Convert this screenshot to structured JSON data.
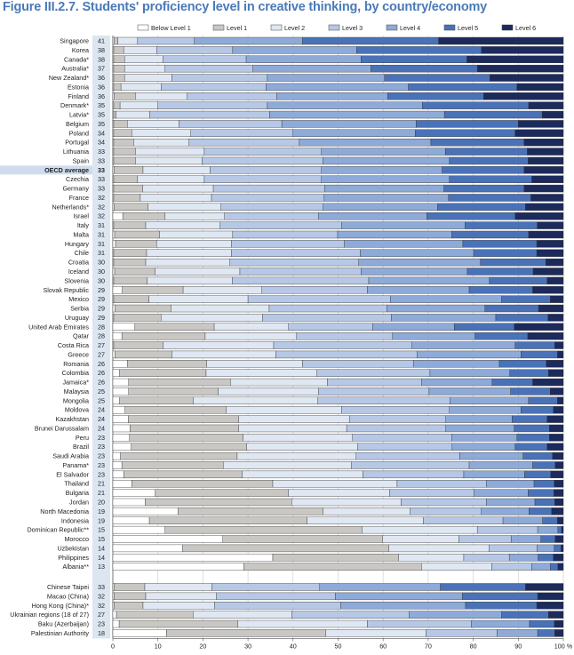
{
  "title": "Figure III.2.7. Students' proficiency level in creative thinking, by country/economy",
  "chart_data": {
    "type": "bar",
    "orientation": "horizontal-stacked-100",
    "title": "Figure III.2.7. Students' proficiency level in creative thinking, by country/economy",
    "legend_position": "top",
    "grid": true,
    "xlim": [
      0,
      100
    ],
    "x_ticks": [
      "0",
      "10",
      "20",
      "30",
      "40",
      "50",
      "60",
      "70",
      "80",
      "90",
      "100 %"
    ],
    "series": [
      {
        "name": "Below Level 1",
        "color": "#ffffff"
      },
      {
        "name": "Level 1",
        "color": "#c9c7c3"
      },
      {
        "name": "Level 2",
        "color": "#dfe7f3"
      },
      {
        "name": "Level 3",
        "color": "#b6c8e6"
      },
      {
        "name": "Level 4",
        "color": "#8eaad8"
      },
      {
        "name": "Level 5",
        "color": "#4a72b8"
      },
      {
        "name": "Level 6",
        "color": "#1c2a5c"
      }
    ],
    "groups": [
      {
        "rows": [
          {
            "name": "Singapore",
            "score": "41",
            "values": [
              0.3,
              0.8,
              4.4,
              12.6,
              24.0,
              30.2,
              27.7
            ]
          },
          {
            "name": "Korea",
            "score": "38",
            "values": [
              0.2,
              2.2,
              7.3,
              16.9,
              27.5,
              27.7,
              18.2
            ]
          },
          {
            "name": "Canada*",
            "score": "38",
            "values": [
              0.2,
              2.4,
              8.5,
              18.5,
              25.5,
              23.5,
              21.4
            ]
          },
          {
            "name": "Australia*",
            "score": "37",
            "values": [
              0.2,
              2.4,
              9.0,
              19.5,
              26.2,
              23.6,
              19.1
            ]
          },
          {
            "name": "New Zealand*",
            "score": "36",
            "values": [
              0.2,
              2.4,
              10.5,
              21.2,
              26.0,
              23.4,
              16.3
            ]
          },
          {
            "name": "Estonia",
            "score": "36",
            "values": [
              0.2,
              1.6,
              8.9,
              23.3,
              31.6,
              24.1,
              10.3
            ]
          },
          {
            "name": "Finland",
            "score": "36",
            "values": [
              0.3,
              4.7,
              11.5,
              19.9,
              24.6,
              21.3,
              17.7
            ]
          },
          {
            "name": "Denmark*",
            "score": "35",
            "values": [
              0.2,
              1.4,
              8.4,
              24.3,
              34.4,
              23.6,
              7.7
            ]
          },
          {
            "name": "Latvia*",
            "score": "35",
            "values": [
              0.2,
              0.5,
              7.5,
              26.6,
              38.8,
              21.7,
              4.7
            ]
          },
          {
            "name": "Belgium",
            "score": "35",
            "values": [
              0.2,
              3.0,
              11.5,
              22.8,
              29.8,
              22.7,
              10.0
            ]
          },
          {
            "name": "Poland",
            "score": "34",
            "values": [
              0.2,
              4.0,
              13.1,
              22.7,
              27.1,
              22.2,
              10.7
            ]
          },
          {
            "name": "Portugal",
            "score": "34",
            "values": [
              0.2,
              4.4,
              12.3,
              24.5,
              29.2,
              20.7,
              8.7
            ]
          },
          {
            "name": "Lithuania",
            "score": "33",
            "values": [
              0.2,
              4.8,
              15.3,
              26.0,
              27.5,
              18.2,
              8.0
            ]
          },
          {
            "name": "Spain",
            "score": "33",
            "values": [
              0.2,
              4.8,
              14.8,
              26.8,
              28.1,
              17.5,
              7.8
            ]
          },
          {
            "name": "OECD average",
            "score": "33",
            "highlight": true,
            "values": [
              0.3,
              6.4,
              14.9,
              24.7,
              26.8,
              18.2,
              8.7
            ]
          },
          {
            "name": "Czechia",
            "score": "33",
            "values": [
              0.2,
              5.3,
              14.8,
              26.0,
              28.4,
              18.3,
              7.0
            ]
          },
          {
            "name": "Germany",
            "score": "33",
            "values": [
              0.2,
              6.4,
              15.7,
              24.7,
              26.5,
              17.8,
              8.7
            ]
          },
          {
            "name": "France",
            "score": "32",
            "values": [
              0.2,
              5.9,
              15.8,
              25.0,
              27.6,
              18.3,
              7.2
            ]
          },
          {
            "name": "Netherlands*",
            "score": "32",
            "values": [
              0.3,
              7.5,
              16.2,
              22.7,
              25.4,
              19.5,
              8.4
            ]
          },
          {
            "name": "Israel",
            "score": "32",
            "values": [
              2.2,
              9.4,
              13.2,
              20.8,
              24.1,
              19.6,
              10.7
            ]
          },
          {
            "name": "Italy",
            "score": "31",
            "values": [
              0.2,
              7.1,
              16.5,
              27.0,
              27.4,
              16.0,
              5.8
            ]
          },
          {
            "name": "Malta",
            "score": "31",
            "values": [
              0.4,
              10.0,
              16.2,
              23.3,
              25.3,
              17.1,
              7.7
            ]
          },
          {
            "name": "Hungary",
            "score": "31",
            "values": [
              0.6,
              9.1,
              16.6,
              25.1,
              26.3,
              16.4,
              5.9
            ]
          },
          {
            "name": "Chile",
            "score": "31",
            "values": [
              0.2,
              7.3,
              18.8,
              28.6,
              25.2,
              14.0,
              5.9
            ]
          },
          {
            "name": "Croatia",
            "score": "30",
            "values": [
              0.2,
              7.1,
              18.7,
              28.6,
              27.0,
              14.5,
              3.9
            ]
          },
          {
            "name": "Iceland",
            "score": "30",
            "values": [
              0.4,
              9.0,
              18.8,
              26.9,
              23.6,
              14.6,
              6.7
            ]
          },
          {
            "name": "Slovenia",
            "score": "30",
            "values": [
              0.2,
              7.4,
              18.9,
              30.3,
              26.8,
              12.8,
              3.6
            ]
          },
          {
            "name": "Slovak Republic",
            "score": "29",
            "values": [
              2.1,
              13.5,
              17.5,
              23.4,
              22.6,
              14.1,
              6.8
            ]
          },
          {
            "name": "Mexico",
            "score": "29",
            "values": [
              0.2,
              7.8,
              22.0,
              31.6,
              24.7,
              10.8,
              2.9
            ]
          },
          {
            "name": "Serbia",
            "score": "29",
            "values": [
              0.5,
              12.4,
              21.8,
              26.1,
              21.8,
              11.9,
              5.5
            ]
          },
          {
            "name": "Uruguay",
            "score": "29",
            "values": [
              0.2,
              10.5,
              22.5,
              28.6,
              23.2,
              11.6,
              3.4
            ]
          },
          {
            "name": "United Arab Emirates",
            "score": "28",
            "values": [
              4.9,
              17.6,
              16.5,
              18.7,
              18.1,
              13.3,
              10.9
            ]
          },
          {
            "name": "Qatar",
            "score": "28",
            "values": [
              2.0,
              18.5,
              20.3,
              21.3,
              18.3,
              11.7,
              7.9
            ]
          },
          {
            "name": "Costa Rica",
            "score": "27",
            "values": [
              0.2,
              11.0,
              24.5,
              30.7,
              22.9,
              8.8,
              1.9
            ]
          },
          {
            "name": "Greece",
            "score": "27",
            "values": [
              0.5,
              12.6,
              23.1,
              31.3,
              23.1,
              8.1,
              1.3
            ]
          },
          {
            "name": "Romania",
            "score": "26",
            "values": [
              3.2,
              17.6,
              21.3,
              24.6,
              19.1,
              10.4,
              3.8
            ]
          },
          {
            "name": "Colombia",
            "score": "26",
            "values": [
              1.5,
              19.2,
              24.6,
              25.1,
              17.7,
              8.6,
              3.3
            ]
          },
          {
            "name": "Jamaica*",
            "score": "26",
            "values": [
              3.5,
              22.6,
              21.5,
              20.9,
              15.7,
              9.0,
              6.8
            ]
          },
          {
            "name": "Malaysia",
            "score": "25",
            "values": [
              3.5,
              19.9,
              22.2,
              24.6,
              18.1,
              8.8,
              2.9
            ]
          },
          {
            "name": "Mongolia",
            "score": "25",
            "values": [
              1.5,
              16.4,
              27.6,
              29.3,
              17.5,
              6.4,
              1.3
            ]
          },
          {
            "name": "Moldova",
            "score": "24",
            "values": [
              2.7,
              22.5,
              25.6,
              23.9,
              15.9,
              7.2,
              2.2
            ]
          },
          {
            "name": "Kazakhstan",
            "score": "24",
            "values": [
              3.4,
              24.5,
              24.6,
              21.4,
              14.7,
              7.8,
              3.6
            ]
          },
          {
            "name": "Brunei Darussalam",
            "score": "24",
            "values": [
              3.8,
              24.1,
              24.0,
              22.0,
              15.2,
              7.8,
              3.1
            ]
          },
          {
            "name": "Peru",
            "score": "23",
            "values": [
              3.7,
              25.2,
              24.3,
              22.0,
              14.5,
              7.2,
              3.1
            ]
          },
          {
            "name": "Brazil",
            "score": "23",
            "values": [
              4.1,
              25.6,
              24.6,
              21.0,
              14.0,
              7.1,
              3.6
            ]
          },
          {
            "name": "Saudi Arabia",
            "score": "23",
            "values": [
              1.7,
              25.9,
              26.4,
              23.0,
              14.1,
              6.5,
              2.4
            ]
          },
          {
            "name": "Panama*",
            "score": "23",
            "values": [
              2.0,
              22.5,
              28.4,
              26.2,
              14.1,
              5.0,
              1.8
            ]
          },
          {
            "name": "El Salvador",
            "score": "23",
            "values": [
              2.4,
              26.3,
              26.8,
              22.4,
              13.5,
              5.8,
              2.8
            ]
          },
          {
            "name": "Thailand",
            "score": "21",
            "values": [
              4.2,
              31.3,
              27.6,
              19.8,
              10.6,
              4.5,
              2.0
            ]
          },
          {
            "name": "Bulgaria",
            "score": "21",
            "values": [
              9.4,
              29.6,
              22.4,
              18.8,
              12.0,
              5.7,
              2.1
            ]
          },
          {
            "name": "Jordan",
            "score": "20",
            "values": [
              7.2,
              32.5,
              24.3,
              18.9,
              10.8,
              4.4,
              1.9
            ]
          },
          {
            "name": "North Macedonia",
            "score": "19",
            "values": [
              14.5,
              32.2,
              19.3,
              15.8,
              10.6,
              5.0,
              2.6
            ]
          },
          {
            "name": "Indonesia",
            "score": "19",
            "values": [
              8.1,
              35.0,
              25.8,
              17.7,
              8.8,
              3.3,
              1.3
            ]
          },
          {
            "name": "Dominican Republic**",
            "score": "15",
            "values": [
              11.6,
              43.7,
              25.6,
              13.4,
              4.5,
              0.8,
              0.4
            ]
          },
          {
            "name": "Morocco",
            "score": "15",
            "values": [
              24.4,
              35.5,
              16.9,
              11.6,
              6.6,
              3.2,
              1.8
            ]
          },
          {
            "name": "Uzbekistan",
            "score": "14",
            "values": [
              15.5,
              45.8,
              22.2,
              10.7,
              3.8,
              1.5,
              0.5
            ]
          },
          {
            "name": "Philippines",
            "score": "14",
            "values": [
              35.5,
              27.9,
              14.5,
              10.1,
              6.4,
              3.4,
              2.2
            ]
          },
          {
            "name": "Albania**",
            "score": "13",
            "values": [
              29.1,
              39.4,
              15.6,
              8.9,
              4.1,
              1.7,
              1.2
            ]
          }
        ]
      },
      {
        "rows": [
          {
            "name": "Chinese Taipei",
            "score": "33",
            "values": [
              0.3,
              6.8,
              14.9,
              23.9,
              26.8,
              18.9,
              8.4
            ]
          },
          {
            "name": "Macao (China)",
            "score": "32",
            "values": [
              0.3,
              7.0,
              15.7,
              26.4,
              28.2,
              16.7,
              5.7
            ]
          },
          {
            "name": "Hong Kong (China)*",
            "score": "32",
            "values": [
              0.3,
              6.4,
              15.9,
              28.0,
              27.7,
              15.8,
              5.9
            ]
          },
          {
            "name": "Ukrainian regions (18 of 27)",
            "score": "27",
            "values": [
              0.8,
              17.0,
              21.9,
              26.1,
              20.5,
              10.4,
              3.3
            ]
          },
          {
            "name": "Baku (Azerbaijan)",
            "score": "23",
            "values": [
              1.4,
              26.3,
              28.8,
              23.1,
              12.9,
              5.5,
              2.0
            ]
          },
          {
            "name": "Palestinian Authority",
            "score": "18",
            "values": [
              11.9,
              35.4,
              22.2,
              15.8,
              9.0,
              3.8,
              1.9
            ]
          }
        ]
      }
    ]
  }
}
